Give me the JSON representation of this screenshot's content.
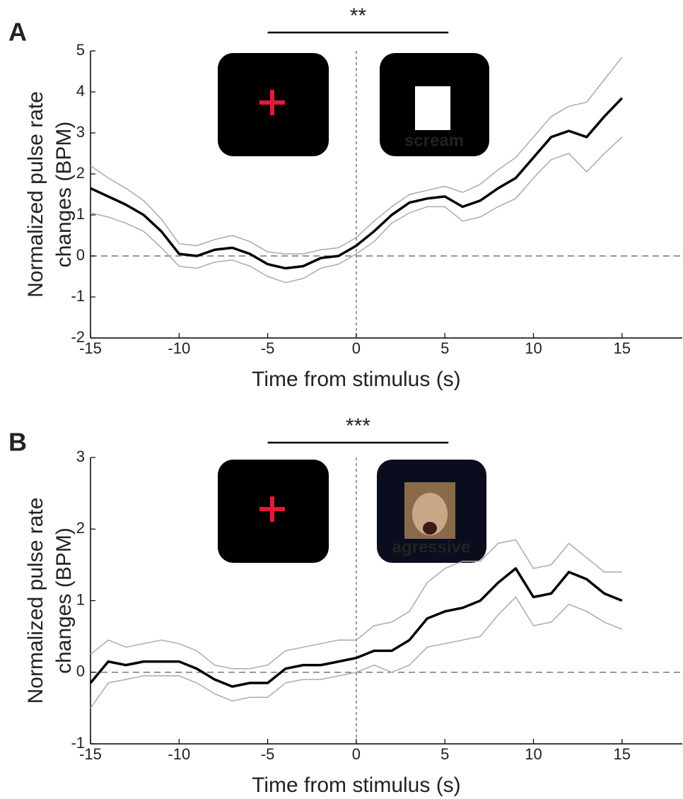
{
  "chart_data": [
    {
      "type": "line",
      "panel_label": "A",
      "significance": {
        "label": "**",
        "x": [
          -5,
          5.2
        ]
      },
      "stimulus_label": "scream",
      "xlabel": "Time from stimulus (s)",
      "ylabel": [
        "Normalized pulse rate",
        "changes (BPM)"
      ],
      "x": [
        -15,
        -14,
        -13,
        -12,
        -11,
        -10,
        -9,
        -8,
        -7,
        -6,
        -5,
        -4,
        -3,
        -2,
        -1,
        0,
        1,
        2,
        3,
        4,
        5,
        6,
        7,
        8,
        9,
        10,
        11,
        12,
        13,
        14,
        15
      ],
      "series": [
        {
          "color": "#000000",
          "values": [
            1.65,
            1.45,
            1.25,
            1.0,
            0.6,
            0.05,
            0.0,
            0.15,
            0.2,
            0.05,
            -0.2,
            -0.3,
            -0.25,
            -0.05,
            0.0,
            0.25,
            0.6,
            1.0,
            1.3,
            1.4,
            1.45,
            1.2,
            1.35,
            1.65,
            1.9,
            2.4,
            2.9,
            3.05,
            2.9,
            3.4,
            3.85
          ]
        },
        {
          "color": "#aaaaaa",
          "values": [
            2.2,
            1.9,
            1.65,
            1.35,
            0.9,
            0.3,
            0.25,
            0.4,
            0.5,
            0.35,
            0.1,
            0.05,
            0.05,
            0.15,
            0.2,
            0.45,
            0.85,
            1.2,
            1.5,
            1.6,
            1.7,
            1.55,
            1.75,
            2.1,
            2.4,
            2.9,
            3.4,
            3.65,
            3.75,
            4.3,
            4.85
          ]
        },
        {
          "color": "#aaaaaa",
          "values": [
            1.05,
            0.95,
            0.8,
            0.6,
            0.2,
            -0.25,
            -0.3,
            -0.15,
            -0.1,
            -0.25,
            -0.5,
            -0.65,
            -0.55,
            -0.3,
            -0.2,
            0.05,
            0.35,
            0.8,
            1.05,
            1.2,
            1.2,
            0.85,
            0.95,
            1.2,
            1.4,
            1.9,
            2.35,
            2.5,
            2.05,
            2.5,
            2.9
          ]
        }
      ],
      "xlim": [
        -15,
        18.4
      ],
      "xticks": [
        -15,
        -10,
        -5,
        0,
        5,
        10,
        15
      ],
      "ylim": [
        -2,
        5
      ],
      "yticks": [
        -2,
        -1,
        0,
        1,
        2,
        3,
        4,
        5
      ]
    },
    {
      "type": "line",
      "panel_label": "B",
      "significance": {
        "label": "***",
        "x": [
          -5,
          5.2
        ]
      },
      "stimulus_label": "agressive",
      "xlabel": "Time from stimulus (s)",
      "ylabel": [
        "Normalized pulse rate",
        "changes (BPM)"
      ],
      "x": [
        -15,
        -14,
        -13,
        -12,
        -11,
        -10,
        -9,
        -8,
        -7,
        -6,
        -5,
        -4,
        -3,
        -2,
        -1,
        0,
        1,
        2,
        3,
        4,
        5,
        6,
        7,
        8,
        9,
        10,
        11,
        12,
        13,
        14,
        15
      ],
      "series": [
        {
          "color": "#000000",
          "values": [
            -0.15,
            0.15,
            0.1,
            0.15,
            0.15,
            0.15,
            0.05,
            -0.1,
            -0.2,
            -0.15,
            -0.15,
            0.05,
            0.1,
            0.1,
            0.15,
            0.2,
            0.3,
            0.3,
            0.45,
            0.75,
            0.85,
            0.9,
            1.0,
            1.25,
            1.45,
            1.05,
            1.1,
            1.4,
            1.3,
            1.1,
            1.0
          ]
        },
        {
          "color": "#aaaaaa",
          "values": [
            0.25,
            0.45,
            0.35,
            0.4,
            0.45,
            0.4,
            0.3,
            0.1,
            0.05,
            0.05,
            0.1,
            0.3,
            0.35,
            0.4,
            0.45,
            0.45,
            0.65,
            0.7,
            0.85,
            1.25,
            1.45,
            1.55,
            1.55,
            1.8,
            1.85,
            1.45,
            1.5,
            1.8,
            1.6,
            1.4,
            1.4
          ]
        },
        {
          "color": "#aaaaaa",
          "values": [
            -0.5,
            -0.15,
            -0.1,
            -0.05,
            -0.05,
            -0.05,
            -0.15,
            -0.3,
            -0.4,
            -0.35,
            -0.35,
            -0.15,
            -0.1,
            -0.1,
            -0.05,
            0.0,
            0.1,
            0.0,
            0.1,
            0.35,
            0.4,
            0.45,
            0.5,
            0.8,
            1.05,
            0.65,
            0.7,
            0.95,
            0.85,
            0.7,
            0.6
          ]
        }
      ],
      "xlim": [
        -15,
        18.4
      ],
      "xticks": [
        -15,
        -10,
        -5,
        0,
        5,
        10,
        15
      ],
      "ylim": [
        -1,
        3
      ],
      "yticks": [
        -1,
        0,
        1,
        2,
        3
      ]
    }
  ]
}
